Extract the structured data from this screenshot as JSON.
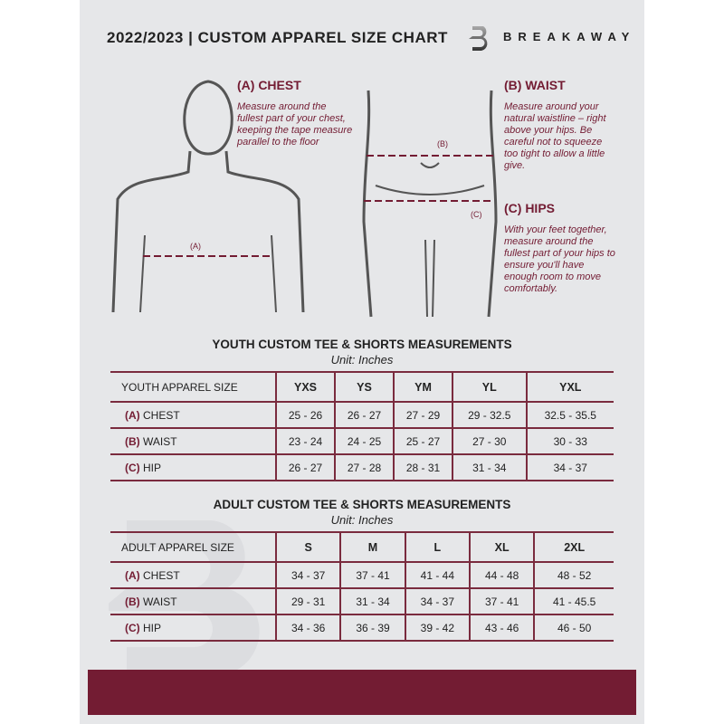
{
  "header": {
    "title": "2022/2023  |  CUSTOM APPAREL SIZE CHART",
    "brand": "BREAKAWAY",
    "logo_letter": "B"
  },
  "measures": {
    "chest": {
      "label": "(A) CHEST",
      "desc": "Measure around the fullest part of your chest, keeping the tape measure parallel to the floor",
      "marker": "(A)"
    },
    "waist": {
      "label": "(B) WAIST",
      "desc": "Measure around your natural waistline – right above your hips. Be careful not to squeeze too tight to allow a little give.",
      "marker": "(B)"
    },
    "hips": {
      "label": "(C) HIPS",
      "desc": "With your feet together, measure around the fullest part of your hips to ensure you'll have enough room to move comfortably.",
      "marker": "(C)"
    }
  },
  "youth": {
    "title": "YOUTH CUSTOM TEE & SHORTS MEASUREMENTS",
    "unit": "Unit: Inches",
    "header": [
      "YOUTH APPAREL SIZE",
      "YXS",
      "YS",
      "YM",
      "YL",
      "YXL"
    ],
    "rows": [
      {
        "letter": "(A)",
        "name": "CHEST",
        "values": [
          "25 - 26",
          "26 - 27",
          "27 - 29",
          "29 - 32.5",
          "32.5 - 35.5"
        ]
      },
      {
        "letter": "(B)",
        "name": "WAIST",
        "values": [
          "23 - 24",
          "24 - 25",
          "25 - 27",
          "27 - 30",
          "30 - 33"
        ]
      },
      {
        "letter": "(C)",
        "name": "HIP",
        "values": [
          "26 - 27",
          "27 - 28",
          "28 - 31",
          "31 - 34",
          "34 - 37"
        ]
      }
    ]
  },
  "adult": {
    "title": "ADULT CUSTOM TEE & SHORTS MEASUREMENTS",
    "unit": "Unit: Inches",
    "header": [
      "ADULT APPAREL SIZE",
      "S",
      "M",
      "L",
      "XL",
      "2XL"
    ],
    "rows": [
      {
        "letter": "(A)",
        "name": "CHEST",
        "values": [
          "34 - 37",
          "37 - 41",
          "41 - 44",
          "44 - 48",
          "48 - 52"
        ]
      },
      {
        "letter": "(B)",
        "name": "WAIST",
        "values": [
          "29 - 31",
          "31 - 34",
          "34 - 37",
          "37 - 41",
          "41 - 45.5"
        ]
      },
      {
        "letter": "(C)",
        "name": "HIP",
        "values": [
          "34 - 36",
          "36 - 39",
          "39 - 42",
          "43 - 46",
          "46 - 50"
        ]
      }
    ]
  },
  "colors": {
    "accent": "#731c33",
    "panel": "#e6e7e9"
  }
}
